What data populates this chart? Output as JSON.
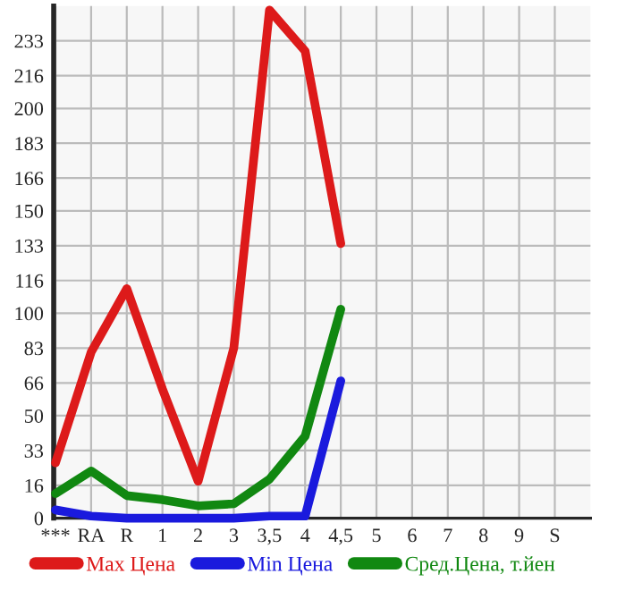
{
  "chart_data": {
    "type": "line",
    "categories": [
      "***",
      "RA",
      "R",
      "1",
      "2",
      "3",
      "3,5",
      "4",
      "4,5",
      "5",
      "6",
      "7",
      "8",
      "9",
      "S"
    ],
    "series": [
      {
        "name": "Max Цена",
        "color": "#dd1a1a",
        "values": [
          27,
          81,
          112,
          63,
          18,
          83,
          248,
          228,
          134,
          null,
          null,
          null,
          null,
          null,
          null
        ]
      },
      {
        "name": "Min Цена",
        "color": "#1a1add",
        "values": [
          4,
          1,
          0,
          0,
          0,
          0,
          1,
          1,
          67,
          null,
          null,
          null,
          null,
          null,
          null
        ]
      },
      {
        "name": "Сред.Цена, т.йен",
        "color": "#118811",
        "values": [
          12,
          23,
          11,
          9,
          6,
          7,
          19,
          40,
          102,
          null,
          null,
          null,
          null,
          null,
          null
        ]
      }
    ],
    "ylim": [
      0,
      250
    ],
    "yticks": [
      0,
      16,
      33,
      50,
      66,
      83,
      100,
      116,
      133,
      150,
      166,
      183,
      200,
      216,
      233
    ],
    "grid": true,
    "legend": "bottom",
    "marker": "none",
    "line_style": "solid"
  }
}
